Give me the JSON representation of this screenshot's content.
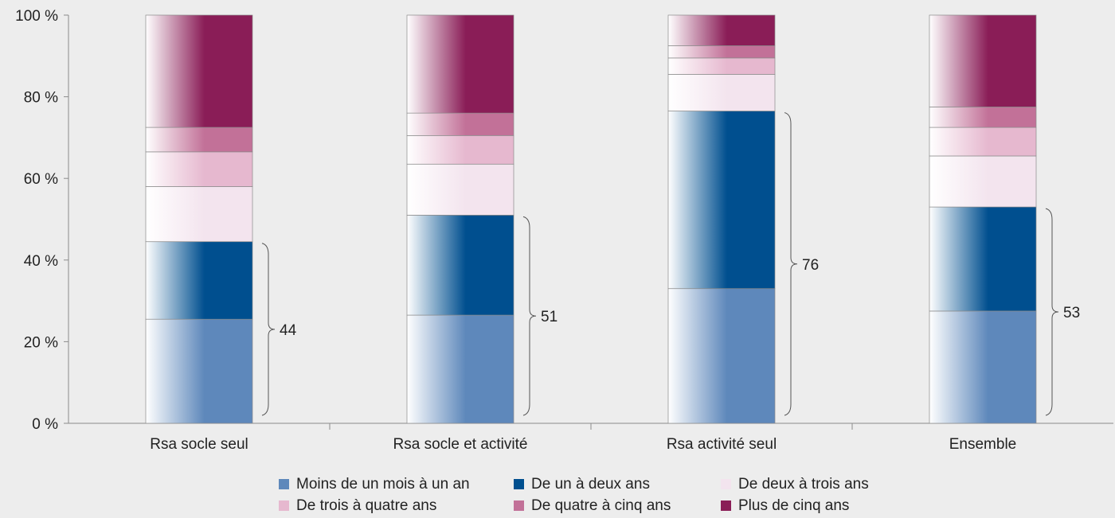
{
  "chart_data": {
    "type": "bar",
    "stacked": true,
    "categories": [
      "Rsa socle seul",
      "Rsa socle et activité",
      "Rsa activité seul",
      "Ensemble"
    ],
    "series": [
      {
        "name": "Moins de un mois à un an",
        "color": "#5e88bb",
        "values": [
          25.5,
          26.5,
          33,
          27.5
        ]
      },
      {
        "name": "De un à deux ans",
        "color": "#004f8f",
        "values": [
          19,
          24.5,
          43.5,
          25.5
        ]
      },
      {
        "name": "De deux à trois ans",
        "color": "#f3e4ee",
        "values": [
          13.5,
          12.5,
          9,
          12.5
        ]
      },
      {
        "name": "De trois à quatre ans",
        "color": "#e6b8cf",
        "values": [
          8.5,
          7,
          4,
          7
        ]
      },
      {
        "name": "De quatre à cinq ans",
        "color": "#c27198",
        "values": [
          6,
          5.5,
          3,
          5
        ]
      },
      {
        "name": "Plus de cinq ans",
        "color": "#8a1d57",
        "values": [
          27.5,
          24,
          7.5,
          22.5
        ]
      }
    ],
    "brace_labels": [
      "44",
      "51",
      "76",
      "53"
    ],
    "ylim": [
      0,
      100
    ],
    "yticks": [
      0,
      20,
      40,
      60,
      80,
      100
    ],
    "ytick_labels": [
      "0 %",
      "20 %",
      "40 %",
      "60 %",
      "80 %",
      "100 %"
    ],
    "title": "",
    "xlabel": "",
    "ylabel": "",
    "grid": false,
    "legend_position": "bottom"
  }
}
